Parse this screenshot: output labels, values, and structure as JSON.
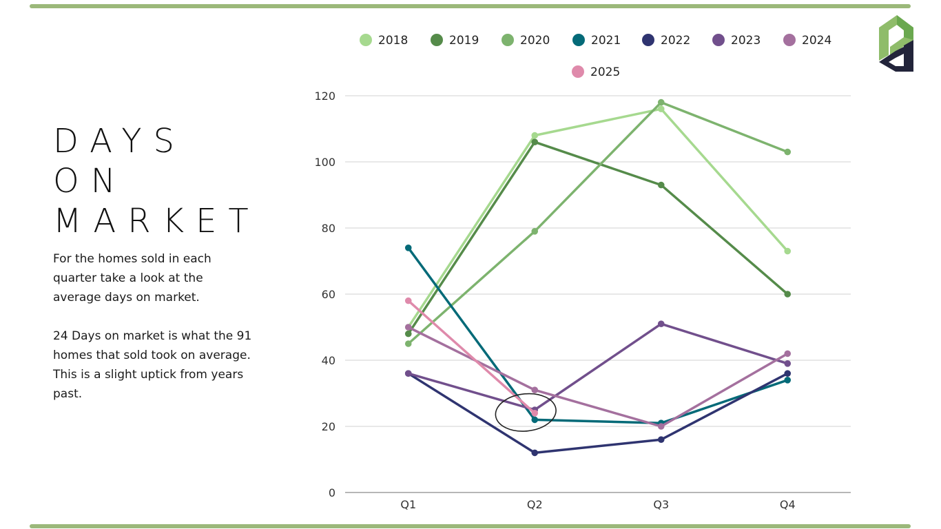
{
  "slide": {
    "title_lines": [
      "DAYS",
      "ON",
      "MARKET"
    ],
    "paragraphs": [
      "For the homes sold in each quarter take a look at the average days on market.",
      "24 Days on market is what the 91 homes that sold took on average.  This is a slight uptick from years past."
    ],
    "accent_color": "#9bb87a",
    "logo": {
      "name": "pd-logo",
      "colors": [
        "#8fbc6a",
        "#6aa84f",
        "#22243a"
      ]
    },
    "annotation": "circle-highlight-Q2"
  },
  "chart_data": {
    "type": "line",
    "title": "",
    "xlabel": "",
    "ylabel": "",
    "categories": [
      "Q1",
      "Q2",
      "Q3",
      "Q4"
    ],
    "ylim": [
      0,
      120
    ],
    "yticks": [
      0,
      20,
      40,
      60,
      80,
      100,
      120
    ],
    "grid": true,
    "legend_position": "top",
    "series": [
      {
        "name": "2018",
        "color": "#a6d98f",
        "values": [
          50,
          108,
          116,
          73
        ]
      },
      {
        "name": "2019",
        "color": "#558b4a",
        "values": [
          48,
          106,
          93,
          60
        ]
      },
      {
        "name": "2020",
        "color": "#7db36e",
        "values": [
          45,
          79,
          118,
          103
        ]
      },
      {
        "name": "2021",
        "color": "#046a78",
        "values": [
          74,
          22,
          21,
          34
        ]
      },
      {
        "name": "2022",
        "color": "#2f3470",
        "values": [
          36,
          12,
          16,
          36
        ]
      },
      {
        "name": "2023",
        "color": "#714f8c",
        "values": [
          36,
          25,
          51,
          39
        ]
      },
      {
        "name": "2024",
        "color": "#a4709e",
        "values": [
          50,
          31,
          20,
          42
        ]
      },
      {
        "name": "2025",
        "color": "#df8aab",
        "values": [
          58,
          24,
          null,
          null
        ]
      }
    ],
    "annotations": [
      {
        "type": "ellipse",
        "category": "Q2",
        "around_value": 24,
        "color": "#222222"
      }
    ]
  }
}
